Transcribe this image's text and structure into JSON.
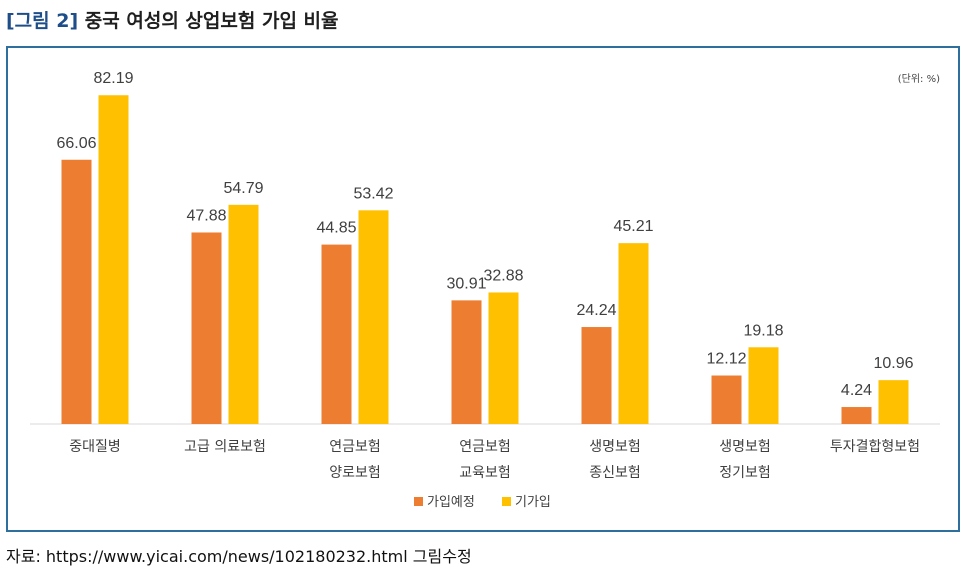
{
  "figure": {
    "label": "[그림 2]",
    "title": "중국 여성의 상업보험 가입 비율",
    "unit_note": "(단위: %)",
    "source": "자료: https://www.yicai.com/news/102180232.html 그림수정"
  },
  "colors": {
    "planned": "#ED7D31",
    "existing": "#FFC000",
    "frame": "#2E6F9E",
    "axis": "#D9D9D9"
  },
  "chart_data": {
    "type": "bar",
    "categories": [
      [
        "중대질병"
      ],
      [
        "고급 의료보험"
      ],
      [
        "연금보험",
        "양로보험"
      ],
      [
        "연금보험",
        "교육보험"
      ],
      [
        "생명보험",
        "종신보험"
      ],
      [
        "생명보험",
        "정기보험"
      ],
      [
        "투자결합형보험"
      ]
    ],
    "series": [
      {
        "name": "가입예정",
        "values": [
          66.06,
          47.88,
          44.85,
          30.91,
          24.24,
          12.12,
          4.24
        ]
      },
      {
        "name": "기가입",
        "values": [
          82.19,
          54.79,
          53.42,
          32.88,
          45.21,
          19.18,
          10.96
        ]
      }
    ],
    "value_labels": [
      [
        "66.06",
        "47.88",
        "44.85",
        "30.91",
        "24.24",
        "12.12",
        "4.24"
      ],
      [
        "82.19",
        "54.79",
        "53.42",
        "32.88",
        "45.21",
        "19.18",
        "10.96"
      ]
    ],
    "ylim": [
      0,
      90
    ],
    "grid": false,
    "legend_position": "bottom"
  }
}
